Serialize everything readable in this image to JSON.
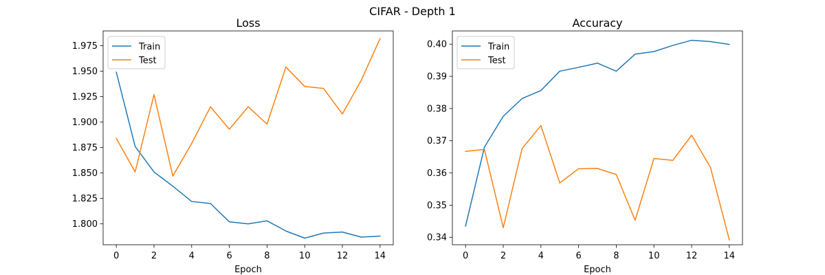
{
  "figure": {
    "suptitle": "CIFAR - Depth 1"
  },
  "chart_data": [
    {
      "type": "line",
      "title": "Loss",
      "xlabel": "Epoch",
      "ylabel": "",
      "xlim": [
        -0.7,
        14.7
      ],
      "ylim": [
        1.7795,
        1.9895
      ],
      "xticks": [
        0,
        2,
        4,
        6,
        8,
        10,
        12,
        14
      ],
      "yticks": [
        1.8,
        1.825,
        1.85,
        1.875,
        1.9,
        1.925,
        1.95,
        1.975
      ],
      "ytick_labels": [
        "1.800",
        "1.825",
        "1.850",
        "1.875",
        "1.900",
        "1.925",
        "1.950",
        "1.975"
      ],
      "xtick_labels": [
        "0",
        "2",
        "4",
        "6",
        "8",
        "10",
        "12",
        "14"
      ],
      "legend": "top-left",
      "grid": false,
      "x": [
        0,
        1,
        2,
        3,
        4,
        5,
        6,
        7,
        8,
        9,
        10,
        11,
        12,
        13,
        14
      ],
      "series": [
        {
          "name": "Train",
          "color": "#1f77b4",
          "values": [
            1.949,
            1.876,
            1.851,
            1.837,
            1.822,
            1.82,
            1.802,
            1.8,
            1.803,
            1.793,
            1.786,
            1.791,
            1.792,
            1.787,
            1.788
          ]
        },
        {
          "name": "Test",
          "color": "#ff7f0e",
          "values": [
            1.884,
            1.851,
            1.927,
            1.847,
            1.879,
            1.915,
            1.893,
            1.915,
            1.898,
            1.954,
            1.935,
            1.933,
            1.908,
            1.941,
            1.982
          ]
        }
      ]
    },
    {
      "type": "line",
      "title": "Accuracy",
      "xlabel": "Epoch",
      "ylabel": "",
      "xlim": [
        -0.7,
        14.7
      ],
      "ylim": [
        0.3377,
        0.4041
      ],
      "xticks": [
        0,
        2,
        4,
        6,
        8,
        10,
        12,
        14
      ],
      "yticks": [
        0.34,
        0.35,
        0.36,
        0.37,
        0.38,
        0.39,
        0.4
      ],
      "ytick_labels": [
        "0.34",
        "0.35",
        "0.36",
        "0.37",
        "0.38",
        "0.39",
        "0.40"
      ],
      "xtick_labels": [
        "0",
        "2",
        "4",
        "6",
        "8",
        "10",
        "12",
        "14"
      ],
      "legend": "top-left",
      "grid": false,
      "x": [
        0,
        1,
        2,
        3,
        4,
        5,
        6,
        7,
        8,
        9,
        10,
        11,
        12,
        13,
        14
      ],
      "series": [
        {
          "name": "Train",
          "color": "#1f77b4",
          "values": [
            0.3435,
            0.368,
            0.3776,
            0.3831,
            0.3856,
            0.3916,
            0.3928,
            0.3941,
            0.3916,
            0.3969,
            0.3977,
            0.3996,
            0.4012,
            0.4008,
            0.3999
          ]
        },
        {
          "name": "Test",
          "color": "#ff7f0e",
          "values": [
            0.3667,
            0.3673,
            0.343,
            0.3676,
            0.3747,
            0.3569,
            0.3613,
            0.3614,
            0.3595,
            0.3453,
            0.3645,
            0.3639,
            0.3717,
            0.3617,
            0.3392
          ]
        }
      ]
    }
  ]
}
